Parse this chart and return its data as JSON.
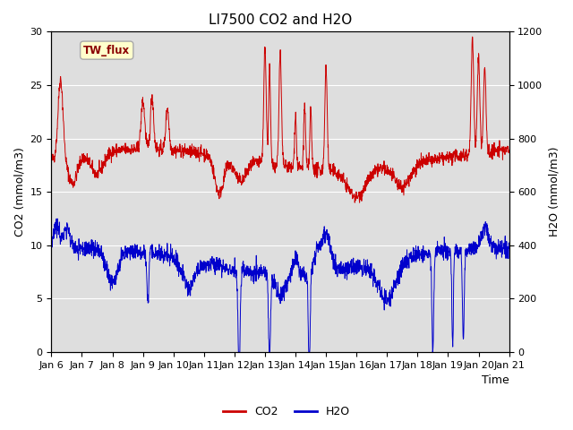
{
  "title": "LI7500 CO2 and H2O",
  "xlabel": "Time",
  "ylabel_left": "CO2 (mmol/m3)",
  "ylabel_right": "H2O (mmol/m3)",
  "xlim": [
    0,
    15
  ],
  "ylim_left": [
    0,
    30
  ],
  "ylim_right": [
    0,
    1200
  ],
  "xtick_labels": [
    "Jan 6",
    "Jan 7",
    "Jan 8",
    "Jan 9",
    "Jan 10",
    "Jan 11",
    "Jan 12",
    "Jan 13",
    "Jan 14",
    "Jan 15",
    "Jan 16",
    "Jan 17",
    "Jan 18",
    "Jan 19",
    "Jan 20",
    "Jan 21"
  ],
  "xtick_positions": [
    0,
    1,
    2,
    3,
    4,
    5,
    6,
    7,
    8,
    9,
    10,
    11,
    12,
    13,
    14,
    15
  ],
  "co2_color": "#cc0000",
  "h2o_color": "#0000cc",
  "fig_bg_color": "#ffffff",
  "plot_bg_color": "#e8e8e8",
  "inner_band_color": "#d8d8d8",
  "grid_color": "#ffffff",
  "legend_label_co2": "CO2",
  "legend_label_h2o": "H2O",
  "dataset_label": "TW_flux",
  "dataset_label_fg": "#8b0000",
  "dataset_label_bg": "#ffffcc",
  "dataset_label_border": "#aaaaaa",
  "title_fontsize": 11,
  "axis_fontsize": 9,
  "tick_fontsize": 8,
  "legend_fontsize": 9,
  "yticks_left": [
    0,
    5,
    10,
    15,
    20,
    25,
    30
  ],
  "yticks_right": [
    0,
    200,
    400,
    600,
    800,
    1000,
    1200
  ]
}
